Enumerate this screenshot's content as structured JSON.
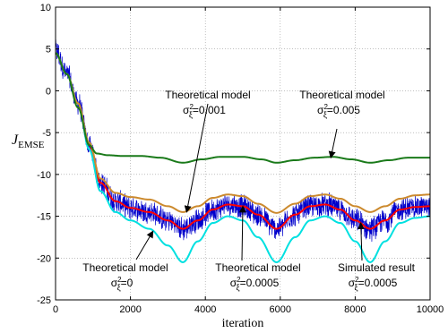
{
  "chart_data": {
    "type": "line",
    "title": "",
    "xlabel": "iteration",
    "ylabel": "J",
    "ylabel_subscript": "EMSE",
    "xlim": [
      0,
      10000
    ],
    "ylim": [
      -25,
      10
    ],
    "xticks": [
      0,
      2000,
      4000,
      6000,
      8000,
      10000
    ],
    "yticks": [
      -25,
      -20,
      -15,
      -10,
      -5,
      0,
      5,
      10
    ],
    "grid": true,
    "series": [
      {
        "color": "#0000cc",
        "style": "noisy",
        "x": [
          0,
          300,
          600,
          900,
          1200,
          1600,
          2000,
          2500,
          3000,
          3400,
          3800,
          4200,
          4600,
          5000,
          5400,
          5900,
          6400,
          6800,
          7200,
          7600,
          8000,
          8400,
          8800,
          9200,
          9600,
          10000
        ],
        "y": [
          4.8,
          2.0,
          -1.5,
          -6.5,
          -11.0,
          -13.2,
          -14.0,
          -14.5,
          -15.5,
          -16.5,
          -15.5,
          -14.2,
          -13.6,
          -13.8,
          -14.8,
          -16.5,
          -14.8,
          -13.8,
          -13.6,
          -14.2,
          -15.5,
          -16.5,
          -15.5,
          -14.2,
          -13.9,
          -13.8
        ],
        "noise_amplitude": 1.6
      },
      {
        "color": "#ff0000",
        "x": [
          0,
          300,
          600,
          900,
          1200,
          1600,
          2000,
          2500,
          3000,
          3400,
          3800,
          4200,
          4600,
          5000,
          5400,
          5900,
          6400,
          6800,
          7200,
          7600,
          8000,
          8400,
          8800,
          9200,
          9600,
          10000
        ],
        "y": [
          4.5,
          2.0,
          -1.5,
          -6.5,
          -11.0,
          -13.2,
          -14.0,
          -14.5,
          -15.5,
          -16.5,
          -15.5,
          -14.2,
          -13.6,
          -13.8,
          -14.8,
          -16.5,
          -14.8,
          -13.8,
          -13.6,
          -14.2,
          -15.5,
          -16.5,
          -15.5,
          -14.2,
          -13.9,
          -13.8
        ]
      },
      {
        "color": "#00e0e0",
        "x": [
          0,
          300,
          600,
          900,
          1200,
          1600,
          2000,
          2500,
          3000,
          3400,
          3800,
          4200,
          4600,
          5000,
          5400,
          5900,
          6400,
          6800,
          7200,
          7600,
          8000,
          8400,
          8800,
          9200,
          9600,
          10000
        ],
        "y": [
          4.5,
          2.0,
          -1.5,
          -7.0,
          -12.0,
          -14.5,
          -15.5,
          -16.5,
          -18.5,
          -20.5,
          -18.0,
          -15.8,
          -15.0,
          -15.5,
          -17.5,
          -20.5,
          -17.5,
          -15.5,
          -15.0,
          -15.8,
          -18.0,
          -20.5,
          -18.0,
          -15.8,
          -15.2,
          -15.0
        ]
      },
      {
        "color": "#cc8a2e",
        "x": [
          0,
          300,
          600,
          900,
          1200,
          1600,
          2000,
          2500,
          3000,
          3400,
          3800,
          4200,
          4600,
          5000,
          5400,
          5900,
          6400,
          6800,
          7200,
          7600,
          8000,
          8400,
          8800,
          9200,
          9600,
          10000
        ],
        "y": [
          4.5,
          2.0,
          -1.5,
          -6.2,
          -10.5,
          -12.2,
          -12.7,
          -13.0,
          -13.8,
          -14.5,
          -13.8,
          -12.8,
          -12.4,
          -12.6,
          -13.5,
          -14.6,
          -13.5,
          -12.6,
          -12.4,
          -12.9,
          -13.8,
          -14.5,
          -13.8,
          -12.9,
          -12.5,
          -12.4
        ]
      },
      {
        "color": "#1a7a1a",
        "x": [
          0,
          300,
          600,
          900,
          1100,
          1400,
          1800,
          2300,
          2800,
          3400,
          3900,
          4400,
          5000,
          5500,
          5900,
          6400,
          6900,
          7400,
          7900,
          8400,
          8900,
          9400,
          10000
        ],
        "y": [
          4.5,
          2.0,
          -2.0,
          -6.5,
          -7.5,
          -7.7,
          -7.8,
          -7.8,
          -8.0,
          -8.6,
          -8.2,
          -7.9,
          -7.9,
          -8.2,
          -8.6,
          -8.3,
          -8.0,
          -7.9,
          -8.2,
          -8.6,
          -8.3,
          -8.0,
          -8.0
        ]
      }
    ],
    "annotations": [
      {
        "id": "a1",
        "line1": "Theoretical model",
        "sym": "σ",
        "sub": "ξ",
        "sup": "2",
        "value": "=0.001",
        "arrow_to": [
          3500,
          -14.5
        ]
      },
      {
        "id": "a2",
        "line1": "Theoretical model",
        "sym": "σ",
        "sub": "ξ",
        "sup": "2",
        "value": "=0.005",
        "arrow_to": [
          7350,
          -8.0
        ]
      },
      {
        "id": "a3",
        "line1": "Theoretical model",
        "sym": "σ",
        "sub": "ξ",
        "sup": "2",
        "value": "=0",
        "arrow_to": [
          2600,
          -16.8
        ]
      },
      {
        "id": "a4",
        "line1": "Theoretical model",
        "sym": "σ",
        "sub": "ξ",
        "sup": "2",
        "value": "=0.0005",
        "arrow_to": [
          5000,
          -13.8
        ]
      },
      {
        "id": "a5",
        "line1": "Simulated result",
        "sym": "σ",
        "sub": "ξ",
        "sup": "2",
        "value": "=0.0005",
        "arrow_to": [
          8150,
          -15.8
        ]
      }
    ]
  }
}
